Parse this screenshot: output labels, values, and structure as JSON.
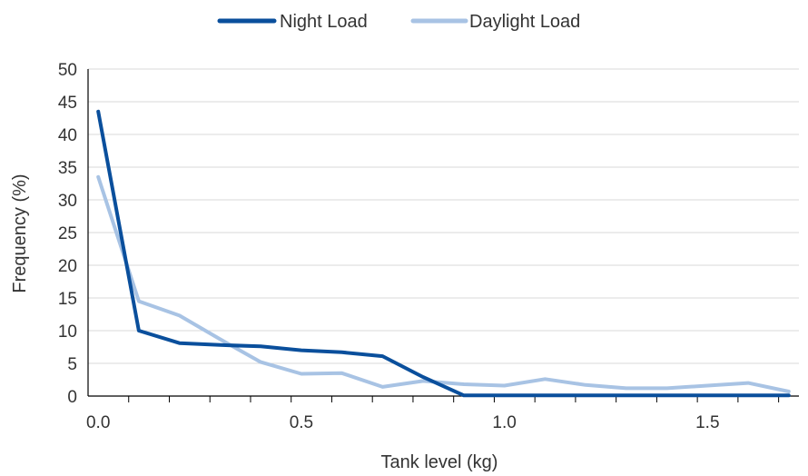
{
  "chart_data": {
    "type": "line",
    "title": "",
    "xlabel": "Tank level (kg)",
    "ylabel": "Frequency (%)",
    "xlim": [
      -0.025,
      1.725
    ],
    "ylim": [
      0,
      50
    ],
    "yticks": [
      "0",
      "5",
      "10",
      "15",
      "20",
      "25",
      "30",
      "35",
      "40",
      "45",
      "50"
    ],
    "xticks": [
      "0.0",
      "0.5",
      "1.0",
      "1.5"
    ],
    "grid": true,
    "legend_position": "top",
    "x": [
      0.0,
      0.1,
      0.2,
      0.3,
      0.4,
      0.5,
      0.6,
      0.7,
      0.8,
      0.9,
      1.0,
      1.1,
      1.2,
      1.3,
      1.4,
      1.5,
      1.6,
      1.7
    ],
    "series": [
      {
        "name": "Night Load",
        "color": "#0a4f9c",
        "values": [
          43.5,
          10.0,
          8.1,
          7.8,
          7.6,
          7.0,
          6.7,
          6.1,
          2.9,
          0.1,
          0.1,
          0.1,
          0.1,
          0.1,
          0.1,
          0.1,
          0.1,
          0.1
        ]
      },
      {
        "name": "Daylight Load",
        "color": "#a8c3e4",
        "values": [
          33.5,
          14.5,
          12.3,
          8.7,
          5.2,
          3.4,
          3.5,
          1.4,
          2.3,
          1.8,
          1.6,
          2.6,
          1.7,
          1.2,
          1.2,
          1.6,
          2.0,
          0.7
        ]
      }
    ]
  }
}
